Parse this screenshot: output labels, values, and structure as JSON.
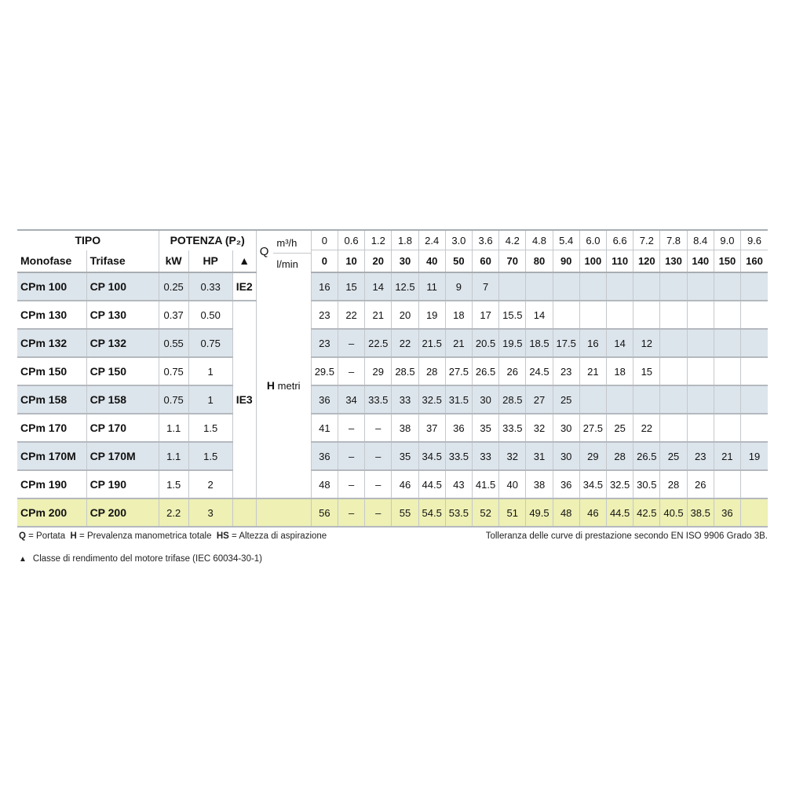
{
  "header": {
    "tipo": "TIPO",
    "potenza": "POTENZA (P₂)",
    "monofase": "Monofase",
    "trifase": "Trifase",
    "kw": "kW",
    "hp": "HP",
    "triangle": "▲",
    "q": "Q",
    "m3h_unit": "m³/h",
    "lmin_unit": "l/min",
    "m3h": [
      "0",
      "0.6",
      "1.2",
      "1.8",
      "2.4",
      "3.0",
      "3.6",
      "4.2",
      "4.8",
      "5.4",
      "6.0",
      "6.6",
      "7.2",
      "7.8",
      "8.4",
      "9.0",
      "9.6"
    ],
    "lmin": [
      "0",
      "10",
      "20",
      "30",
      "40",
      "50",
      "60",
      "70",
      "80",
      "90",
      "100",
      "110",
      "120",
      "130",
      "140",
      "150",
      "160"
    ]
  },
  "ie2": "IE2",
  "ie3": "IE3",
  "h_label": "H",
  "h_unit": "metri",
  "rows": [
    {
      "mono": "CPm 100",
      "tri": "CP 100",
      "kw": "0.25",
      "hp": "0.33",
      "h": [
        "16",
        "15",
        "14",
        "12.5",
        "11",
        "9",
        "7",
        "",
        "",
        "",
        "",
        "",
        "",
        "",
        "",
        "",
        ""
      ]
    },
    {
      "mono": "CPm 130",
      "tri": "CP 130",
      "kw": "0.37",
      "hp": "0.50",
      "h": [
        "23",
        "22",
        "21",
        "20",
        "19",
        "18",
        "17",
        "15.5",
        "14",
        "",
        "",
        "",
        "",
        "",
        "",
        "",
        ""
      ]
    },
    {
      "mono": "CPm 132",
      "tri": "CP 132",
      "kw": "0.55",
      "hp": "0.75",
      "h": [
        "23",
        "–",
        "22.5",
        "22",
        "21.5",
        "21",
        "20.5",
        "19.5",
        "18.5",
        "17.5",
        "16",
        "14",
        "12",
        "",
        "",
        "",
        ""
      ]
    },
    {
      "mono": "CPm 150",
      "tri": "CP 150",
      "kw": "0.75",
      "hp": "1",
      "h": [
        "29.5",
        "–",
        "29",
        "28.5",
        "28",
        "27.5",
        "26.5",
        "26",
        "24.5",
        "23",
        "21",
        "18",
        "15",
        "",
        "",
        "",
        ""
      ]
    },
    {
      "mono": "CPm 158",
      "tri": "CP 158",
      "kw": "0.75",
      "hp": "1",
      "h": [
        "36",
        "34",
        "33.5",
        "33",
        "32.5",
        "31.5",
        "30",
        "28.5",
        "27",
        "25",
        "",
        "",
        "",
        "",
        "",
        "",
        ""
      ]
    },
    {
      "mono": "CPm 170",
      "tri": "CP 170",
      "kw": "1.1",
      "hp": "1.5",
      "h": [
        "41",
        "–",
        "–",
        "38",
        "37",
        "36",
        "35",
        "33.5",
        "32",
        "30",
        "27.5",
        "25",
        "22",
        "",
        "",
        "",
        ""
      ]
    },
    {
      "mono": "CPm 170M",
      "tri": "CP 170M",
      "kw": "1.1",
      "hp": "1.5",
      "h": [
        "36",
        "–",
        "–",
        "35",
        "34.5",
        "33.5",
        "33",
        "32",
        "31",
        "30",
        "29",
        "28",
        "26.5",
        "25",
        "23",
        "21",
        "19"
      ]
    },
    {
      "mono": "CPm 190",
      "tri": "CP 190",
      "kw": "1.5",
      "hp": "2",
      "h": [
        "48",
        "–",
        "–",
        "46",
        "44.5",
        "43",
        "41.5",
        "40",
        "38",
        "36",
        "34.5",
        "32.5",
        "30.5",
        "28",
        "26",
        "",
        ""
      ]
    },
    {
      "mono": "CPm 200",
      "tri": "CP 200",
      "kw": "2.2",
      "hp": "3",
      "h": [
        "56",
        "–",
        "–",
        "55",
        "54.5",
        "53.5",
        "52",
        "51",
        "49.5",
        "48",
        "46",
        "44.5",
        "42.5",
        "40.5",
        "38.5",
        "36",
        ""
      ]
    }
  ],
  "highlight_color": "#eef0b4",
  "stripe_color": "#dde5ec",
  "footer": {
    "q_key": "Q",
    "q_text": " = Portata  ",
    "h_key": "H",
    "h_text": " = Prevalenza manometrica totale  ",
    "hs_key": "HS",
    "hs_text": " = Altezza di aspirazione",
    "tolerance": "Tolleranza delle curve di prestazione secondo EN ISO 9906 Grado 3B.",
    "triangle": "▲",
    "note": "Classe di rendimento del motore trifase (IEC 60034-30-1)"
  }
}
